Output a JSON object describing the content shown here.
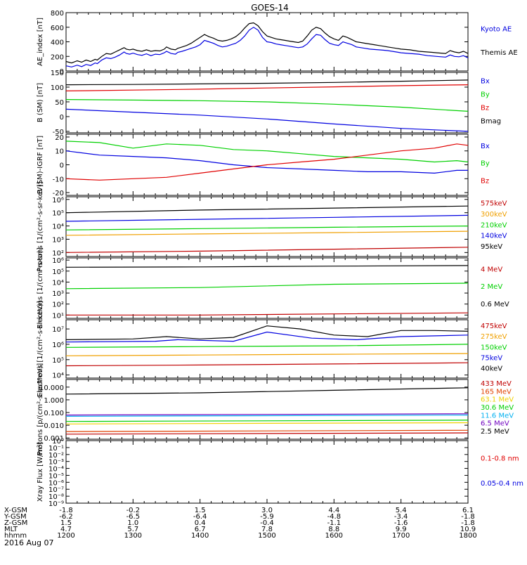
{
  "title": "GOES-14",
  "date": "2016 Aug 07",
  "time_axis": {
    "row_labels": [
      "X-GSM",
      "Y-GSM",
      "Z-GSM",
      "MLT",
      "hhmm"
    ],
    "columns": [
      {
        "values": [
          "-1.8",
          "-6.2",
          "1.5",
          "4.7",
          "1200"
        ]
      },
      {
        "values": [
          "-0.2",
          "-6.5",
          "1.0",
          "5.7",
          "1300"
        ]
      },
      {
        "values": [
          "1.5",
          "-6.4",
          "0.4",
          "6.7",
          "1400"
        ]
      },
      {
        "values": [
          "3.0",
          "-5.9",
          "-0.4",
          "7.8",
          "1500"
        ]
      },
      {
        "values": [
          "4.4",
          "-4.8",
          "-1.1",
          "8.8",
          "1600"
        ]
      },
      {
        "values": [
          "5.4",
          "-3.4",
          "-1.6",
          "9.9",
          "1700"
        ]
      },
      {
        "values": [
          "6.1",
          "-1.8",
          "-1.8",
          "10.9",
          "1800"
        ]
      }
    ]
  },
  "chart_data": [
    {
      "type": "line",
      "id": "ae",
      "ylabel": "AE_index [nT]",
      "ylim": [
        0,
        800
      ],
      "yscale": "linear",
      "yticks": [
        "0",
        "200",
        "400",
        "600",
        "800"
      ],
      "series": [
        {
          "name": "Kyoto AE",
          "color": "#0000e0",
          "x": [
            0,
            5,
            10,
            14,
            18,
            22,
            26,
            28,
            32,
            36,
            40,
            44,
            48,
            52,
            54,
            57,
            60,
            64,
            68,
            72,
            76,
            80,
            84,
            88,
            90,
            94,
            98,
            100,
            104,
            108,
            112,
            116,
            120,
            124,
            128,
            132,
            136,
            140,
            144,
            148,
            152,
            156,
            160,
            164,
            168,
            172,
            176,
            180,
            184,
            188,
            192,
            196,
            200,
            204,
            208,
            212,
            216,
            220,
            224,
            228,
            232,
            236,
            240,
            244,
            248,
            252,
            256,
            260,
            264,
            268,
            272,
            276,
            280,
            284,
            288,
            292,
            296,
            300,
            304,
            308,
            312,
            316,
            320,
            324,
            328,
            332,
            336,
            340,
            344,
            348,
            352,
            356,
            360
          ],
          "y": [
            70,
            55,
            80,
            60,
            90,
            75,
            110,
            100,
            150,
            180,
            170,
            190,
            220,
            260,
            240,
            230,
            245,
            225,
            215,
            235,
            210,
            230,
            225,
            250,
            270,
            240,
            230,
            255,
            270,
            290,
            310,
            330,
            360,
            420,
            400,
            380,
            350,
            330,
            340,
            360,
            380,
            420,
            480,
            560,
            600,
            560,
            460,
            400,
            390,
            370,
            360,
            350,
            340,
            330,
            320,
            330,
            370,
            440,
            500,
            490,
            430,
            380,
            360,
            350,
            400,
            380,
            360,
            330,
            320,
            310,
            300,
            295,
            290,
            285,
            280,
            270,
            260,
            250,
            245,
            240,
            235,
            230,
            220,
            210,
            205,
            200,
            195,
            190,
            220,
            200,
            195,
            210,
            180
          ]
        },
        {
          "name": "Themis AE",
          "color": "#000000",
          "x": [
            0,
            5,
            10,
            14,
            18,
            22,
            26,
            28,
            32,
            36,
            40,
            44,
            48,
            52,
            54,
            57,
            60,
            64,
            68,
            72,
            76,
            80,
            84,
            88,
            90,
            94,
            98,
            100,
            104,
            108,
            112,
            116,
            120,
            124,
            128,
            132,
            136,
            140,
            144,
            148,
            152,
            156,
            160,
            164,
            168,
            172,
            176,
            180,
            184,
            188,
            192,
            196,
            200,
            204,
            208,
            212,
            216,
            220,
            224,
            228,
            232,
            236,
            240,
            244,
            248,
            252,
            256,
            260,
            264,
            268,
            272,
            276,
            280,
            284,
            288,
            292,
            296,
            300,
            304,
            308,
            312,
            316,
            320,
            324,
            328,
            332,
            336,
            340,
            344,
            348,
            352,
            356,
            360
          ],
          "y": [
            130,
            110,
            140,
            120,
            150,
            130,
            160,
            150,
            200,
            240,
            230,
            260,
            290,
            320,
            300,
            290,
            300,
            280,
            270,
            290,
            270,
            280,
            275,
            300,
            330,
            300,
            290,
            310,
            330,
            350,
            380,
            420,
            460,
            500,
            470,
            450,
            420,
            410,
            420,
            440,
            470,
            520,
            590,
            650,
            660,
            620,
            540,
            480,
            460,
            440,
            430,
            420,
            410,
            400,
            390,
            410,
            480,
            560,
            600,
            580,
            520,
            470,
            440,
            420,
            480,
            460,
            430,
            400,
            390,
            380,
            370,
            360,
            350,
            340,
            330,
            320,
            310,
            300,
            295,
            290,
            280,
            270,
            265,
            260,
            255,
            250,
            245,
            240,
            280,
            260,
            250,
            270,
            240
          ]
        }
      ]
    },
    {
      "type": "line",
      "id": "bsm",
      "ylabel": "B (SM) [nT]",
      "ylim": [
        -55,
        150
      ],
      "yscale": "linear",
      "yticks": [
        "-50",
        "0",
        "50",
        "100",
        "150"
      ],
      "series": [
        {
          "name": "Bx",
          "color": "#0000e0",
          "x": [
            0,
            60,
            120,
            180,
            240,
            300,
            360
          ],
          "y": [
            25,
            15,
            5,
            -8,
            -25,
            -40,
            -50
          ]
        },
        {
          "name": "By",
          "color": "#00d000",
          "x": [
            0,
            60,
            120,
            180,
            240,
            300,
            360
          ],
          "y": [
            58,
            56,
            54,
            50,
            42,
            32,
            18
          ]
        },
        {
          "name": "Bz",
          "color": "#e00000",
          "x": [
            0,
            60,
            120,
            180,
            240,
            300,
            360
          ],
          "y": [
            87,
            90,
            93,
            97,
            101,
            105,
            108
          ]
        },
        {
          "name": "Bmag",
          "color": "#000000",
          "x": [
            0,
            60,
            120,
            180,
            240,
            300,
            360
          ],
          "y": [
            108,
            109,
            111,
            113,
            116,
            120,
            124
          ]
        }
      ]
    },
    {
      "type": "line",
      "id": "bigrf",
      "ylabel": "B (SM)-IGRF [nT]",
      "ylim": [
        -22,
        22
      ],
      "yscale": "linear",
      "yticks": [
        "-20",
        "-10",
        "0",
        "10",
        "20"
      ],
      "series": [
        {
          "name": "Bx",
          "color": "#0000e0",
          "x": [
            0,
            30,
            60,
            90,
            120,
            150,
            180,
            210,
            240,
            270,
            300,
            330,
            350,
            360
          ],
          "y": [
            10,
            7,
            6,
            5,
            3,
            0,
            -2,
            -3,
            -4,
            -5,
            -5,
            -6,
            -4,
            -4
          ]
        },
        {
          "name": "By",
          "color": "#00d000",
          "x": [
            0,
            30,
            60,
            90,
            120,
            150,
            180,
            210,
            240,
            270,
            300,
            330,
            350,
            360
          ],
          "y": [
            17,
            16,
            12,
            15,
            14,
            11,
            10,
            8,
            6,
            5,
            4,
            2,
            3,
            2
          ]
        },
        {
          "name": "Bz",
          "color": "#e00000",
          "x": [
            0,
            30,
            60,
            90,
            120,
            150,
            180,
            210,
            240,
            270,
            300,
            330,
            350,
            360
          ],
          "y": [
            -10,
            -11,
            -10,
            -9,
            -6,
            -3,
            0,
            2,
            4,
            7,
            10,
            12,
            15,
            14
          ]
        }
      ]
    },
    {
      "type": "line",
      "id": "protons-low",
      "ylabel": "Protons [1/(cm²-s-sr-keV)]",
      "ylim": [
        1.7,
        6.2
      ],
      "yscale": "log",
      "yticks": [
        "10²",
        "10³",
        "10⁴",
        "10⁵",
        "10⁶"
      ],
      "series": [
        {
          "name": "575keV",
          "color": "#c00000",
          "x": [
            0,
            120,
            240,
            360
          ],
          "y": [
            2.0,
            2.1,
            2.25,
            2.4
          ]
        },
        {
          "name": "300keV",
          "color": "#f0a000",
          "x": [
            0,
            120,
            240,
            360
          ],
          "y": [
            3.3,
            3.4,
            3.5,
            3.6
          ]
        },
        {
          "name": "210keV",
          "color": "#00d000",
          "x": [
            0,
            120,
            240,
            360
          ],
          "y": [
            3.7,
            3.8,
            3.9,
            4.0
          ]
        },
        {
          "name": "140keV",
          "color": "#0000e0",
          "x": [
            0,
            120,
            240,
            360
          ],
          "y": [
            4.35,
            4.5,
            4.65,
            4.8
          ]
        },
        {
          "name": "95keV",
          "color": "#000000",
          "x": [
            0,
            120,
            240,
            360
          ],
          "y": [
            5.0,
            5.2,
            5.35,
            5.5
          ]
        }
      ]
    },
    {
      "type": "line",
      "id": "electrons-high",
      "ylabel": "Electrons [1/(cm²-s-sr)]",
      "ylim": [
        0.7,
        6.2
      ],
      "yscale": "log",
      "yticks": [
        "10¹",
        "10²",
        "10³",
        "10⁴",
        "10⁵",
        "10⁶"
      ],
      "series": [
        {
          "name": "4 MeV",
          "color": "#c00000",
          "x": [
            0,
            120,
            240,
            360
          ],
          "y": [
            1.0,
            1.0,
            1.1,
            1.2
          ]
        },
        {
          "name": "2 MeV",
          "color": "#00d000",
          "x": [
            0,
            120,
            240,
            360
          ],
          "y": [
            3.4,
            3.5,
            3.8,
            3.9
          ]
        },
        {
          "name": "0.6 MeV",
          "color": "#000000",
          "x": [
            0,
            120,
            240,
            360
          ],
          "y": [
            5.35,
            5.38,
            5.45,
            5.5
          ]
        }
      ]
    },
    {
      "type": "line",
      "id": "electrons-low",
      "ylabel": "Electrons [1/(cm²-s-sr-keV)]",
      "ylim": [
        3.8,
        7.6
      ],
      "yscale": "log",
      "yticks": [
        "10⁴",
        "10⁵",
        "10⁶",
        "10⁷"
      ],
      "series": [
        {
          "name": "475keV",
          "color": "#c00000",
          "x": [
            0,
            120,
            240,
            360
          ],
          "y": [
            4.6,
            4.65,
            4.72,
            4.8
          ]
        },
        {
          "name": "275keV",
          "color": "#f0a000",
          "x": [
            0,
            120,
            240,
            360
          ],
          "y": [
            5.25,
            5.3,
            5.35,
            5.4
          ]
        },
        {
          "name": "150keV",
          "color": "#00d000",
          "x": [
            0,
            120,
            240,
            360
          ],
          "y": [
            5.8,
            5.85,
            5.9,
            6.0
          ]
        },
        {
          "name": "75keV",
          "color": "#0000e0",
          "x": [
            0,
            80,
            100,
            150,
            180,
            220,
            260,
            300,
            360
          ],
          "y": [
            6.15,
            6.2,
            6.3,
            6.2,
            6.8,
            6.4,
            6.3,
            6.5,
            6.6
          ]
        },
        {
          "name": "40keV",
          "color": "#000000",
          "x": [
            0,
            60,
            90,
            120,
            150,
            180,
            210,
            240,
            270,
            300,
            330,
            360
          ],
          "y": [
            6.3,
            6.35,
            6.5,
            6.35,
            6.45,
            7.2,
            7.0,
            6.6,
            6.5,
            6.9,
            6.9,
            6.85
          ]
        }
      ]
    },
    {
      "type": "line",
      "id": "protons-high",
      "ylabel": "Protons [p/(cm²-s-sr-MeV)]",
      "ylim": [
        -3.1,
        1.6
      ],
      "yscale": "log",
      "yticks": [
        "0.001",
        "0.010",
        "0.100",
        "1.000",
        "10.000"
      ],
      "series": [
        {
          "name": "433 MeV",
          "color": "#c00000",
          "x": [
            0,
            360
          ],
          "y": [
            -2.7,
            -2.6
          ]
        },
        {
          "name": "165 MeV",
          "color": "#e04000",
          "x": [
            0,
            360
          ],
          "y": [
            -2.5,
            -2.4
          ]
        },
        {
          "name": "63.1 MeV",
          "color": "#f0d000",
          "x": [
            0,
            360
          ],
          "y": [
            -1.9,
            -1.8
          ]
        },
        {
          "name": "30.6 MeV",
          "color": "#00d000",
          "x": [
            0,
            360
          ],
          "y": [
            -1.7,
            -1.6
          ]
        },
        {
          "name": "11.6 MeV",
          "color": "#00b0f0",
          "x": [
            0,
            360
          ],
          "y": [
            -1.3,
            -1.2
          ]
        },
        {
          "name": "6.5 MeV",
          "color": "#7000c0",
          "x": [
            0,
            360
          ],
          "y": [
            -1.2,
            -1.1
          ]
        },
        {
          "name": "2.5 MeV",
          "color": "#000000",
          "x": [
            0,
            120,
            240,
            360
          ],
          "y": [
            0.45,
            0.55,
            0.75,
            0.95
          ]
        }
      ]
    },
    {
      "type": "line",
      "id": "xray",
      "ylabel": "Xray Flux [W/m²]",
      "ylim": [
        -9,
        0
      ],
      "yscale": "log",
      "yticks": [
        "10⁻⁹",
        "10⁻⁸",
        "10⁻⁷",
        "10⁻⁶",
        "10⁻⁵",
        "10⁻⁴",
        "10⁻³",
        "10⁻²",
        "10⁻¹",
        "10⁰"
      ],
      "series": [
        {
          "name": "0.1-0.8 nm",
          "color": "#e00000",
          "x": [],
          "y": []
        },
        {
          "name": "0.05-0.4 nm",
          "color": "#0000e0",
          "x": [],
          "y": []
        }
      ]
    }
  ]
}
